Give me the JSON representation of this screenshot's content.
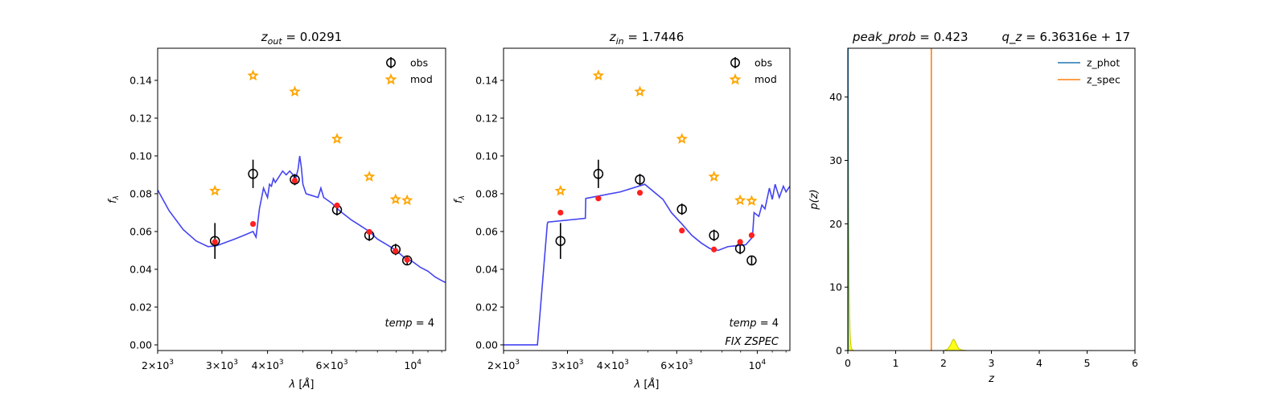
{
  "chart_data": [
    {
      "type": "scatter",
      "title": "z_out = 0.0291",
      "xlabel": "λ [Å]",
      "ylabel": "f_λ",
      "xscale": "log",
      "xlim": [
        2000,
        12300
      ],
      "ylim": [
        -0.003,
        0.157
      ],
      "xticks": [
        {
          "v": 2000,
          "t": "2×10³"
        },
        {
          "v": 3000,
          "t": "3×10³"
        },
        {
          "v": 4000,
          "t": "4×10³"
        },
        {
          "v": 6000,
          "t": "6×10³"
        },
        {
          "v": 10000,
          "t": "10⁴"
        }
      ],
      "yticks": [
        0.0,
        0.02,
        0.04,
        0.06,
        0.08,
        0.1,
        0.12,
        0.14
      ],
      "ytick_labels": [
        "0.00",
        "0.02",
        "0.04",
        "0.06",
        "0.08",
        "0.10",
        "0.12",
        "0.14"
      ],
      "legend": {
        "placement": "top-right",
        "entries": [
          "obs",
          "mod"
        ]
      },
      "annotations": [
        "temp = 4"
      ],
      "series": [
        {
          "name": "obs",
          "marker": "open-circle",
          "color": "#000000",
          "x": [
            2870,
            3650,
            4750,
            6200,
            7600,
            8970,
            9650
          ],
          "y": [
            0.055,
            0.0905,
            0.0875,
            0.0715,
            0.058,
            0.0505,
            0.0447
          ],
          "err": [
            0.0095,
            0.0075,
            0.003,
            0.003,
            0.003,
            0.003,
            0.0025
          ]
        },
        {
          "name": "mod",
          "marker": "star",
          "color": "#ffa500",
          "x": [
            2870,
            3650,
            4750,
            6200,
            7600,
            8970,
            9650
          ],
          "y": [
            0.0815,
            0.1425,
            0.134,
            0.109,
            0.089,
            0.077,
            0.0765
          ]
        },
        {
          "marker": "dot",
          "color": "#ff2020",
          "x": [
            2870,
            3650,
            4750,
            6200,
            7600,
            8970,
            9650
          ],
          "y": [
            0.0545,
            0.064,
            0.087,
            0.0738,
            0.0598,
            0.0497,
            0.045
          ]
        },
        {
          "marker": "line",
          "color": "#3a3af0",
          "x": [
            2000,
            2150,
            2350,
            2550,
            2750,
            2900,
            3050,
            3250,
            3450,
            3650,
            3720,
            3800,
            3900,
            4000,
            4050,
            4100,
            4150,
            4200,
            4300,
            4400,
            4500,
            4600,
            4700,
            4760,
            4850,
            4900,
            4950,
            5000,
            5100,
            5300,
            5500,
            5600,
            5700,
            5800,
            6000,
            6300,
            6800,
            7200,
            7600,
            8000,
            8500,
            9000,
            9500,
            10000,
            10500,
            11000,
            11500,
            12000,
            12300
          ],
          "y": [
            0.082,
            0.071,
            0.061,
            0.055,
            0.052,
            0.0525,
            0.054,
            0.056,
            0.058,
            0.06,
            0.057,
            0.072,
            0.083,
            0.078,
            0.085,
            0.084,
            0.088,
            0.086,
            0.089,
            0.092,
            0.09,
            0.092,
            0.09,
            0.087,
            0.093,
            0.1,
            0.094,
            0.085,
            0.08,
            0.079,
            0.078,
            0.083,
            0.078,
            0.077,
            0.075,
            0.071,
            0.066,
            0.063,
            0.06,
            0.056,
            0.053,
            0.05,
            0.046,
            0.044,
            0.041,
            0.039,
            0.036,
            0.034,
            0.033
          ]
        }
      ]
    },
    {
      "type": "scatter",
      "title": "z_in = 1.7446",
      "xlabel": "λ [Å]",
      "ylabel": "f_λ",
      "xscale": "log",
      "xlim": [
        2000,
        12300
      ],
      "ylim": [
        -0.003,
        0.157
      ],
      "xticks": [
        {
          "v": 2000,
          "t": "2×10³"
        },
        {
          "v": 3000,
          "t": "3×10³"
        },
        {
          "v": 4000,
          "t": "4×10³"
        },
        {
          "v": 6000,
          "t": "6×10³"
        },
        {
          "v": 10000,
          "t": "10⁴"
        }
      ],
      "yticks": [
        0.0,
        0.02,
        0.04,
        0.06,
        0.08,
        0.1,
        0.12,
        0.14
      ],
      "ytick_labels": [
        "0.00",
        "0.02",
        "0.04",
        "0.06",
        "0.08",
        "0.10",
        "0.12",
        "0.14"
      ],
      "legend": {
        "placement": "top-right",
        "entries": [
          "obs",
          "mod"
        ]
      },
      "annotations": [
        "temp = 4",
        "FIX ZSPEC"
      ],
      "series": [
        {
          "name": "obs",
          "marker": "open-circle",
          "color": "#000000",
          "x": [
            2870,
            3650,
            4750,
            6200,
            7600,
            8970,
            9650
          ],
          "y": [
            0.055,
            0.0905,
            0.0875,
            0.0718,
            0.058,
            0.051,
            0.0447
          ],
          "err": [
            0.0095,
            0.0075,
            0.003,
            0.003,
            0.003,
            0.003,
            0.0025
          ]
        },
        {
          "name": "mod",
          "marker": "star",
          "color": "#ffa500",
          "x": [
            2870,
            3650,
            4750,
            6200,
            7600,
            8970,
            9650
          ],
          "y": [
            0.0815,
            0.1425,
            0.134,
            0.109,
            0.089,
            0.0765,
            0.0762
          ]
        },
        {
          "marker": "dot",
          "color": "#ff2020",
          "x": [
            2870,
            3650,
            4750,
            6200,
            7600,
            8970,
            9650
          ],
          "y": [
            0.07,
            0.0775,
            0.0805,
            0.0605,
            0.0505,
            0.0545,
            0.058
          ]
        },
        {
          "marker": "line",
          "color": "#3a3af0",
          "x": [
            2000,
            2480,
            2480,
            2640,
            2650,
            3360,
            3370,
            4200,
            4900,
            5500,
            5800,
            6200,
            6600,
            7000,
            7400,
            7800,
            8300,
            8800,
            9300,
            9700,
            9800,
            10100,
            10300,
            10500,
            10800,
            11000,
            11200,
            11500,
            11800,
            12000,
            12300
          ],
          "y": [
            0.0,
            0.0,
            0.0,
            0.064,
            0.065,
            0.067,
            0.0775,
            0.081,
            0.085,
            0.077,
            0.07,
            0.064,
            0.058,
            0.054,
            0.051,
            0.05,
            0.052,
            0.0525,
            0.053,
            0.057,
            0.07,
            0.068,
            0.074,
            0.072,
            0.083,
            0.077,
            0.085,
            0.078,
            0.084,
            0.081,
            0.084
          ]
        }
      ]
    },
    {
      "type": "line",
      "title": "peak_prob = 0.423",
      "subtitle": "q_z = 6.36316e + 17",
      "xlabel": "z",
      "ylabel": "p(z)",
      "xlim": [
        0,
        6
      ],
      "ylim": [
        0,
        47.7
      ],
      "xticks": [
        0,
        1,
        2,
        3,
        4,
        5,
        6
      ],
      "yticks": [
        0,
        10,
        20,
        30,
        40
      ],
      "legend": {
        "placement": "top-right",
        "entries": [
          "z_phot",
          "z_spec"
        ]
      },
      "series": [
        {
          "name": "z_phot",
          "color": "#1f77b4",
          "x": [
            0.0,
            0.005,
            0.01,
            0.02,
            0.03,
            0.04,
            0.05,
            0.06,
            0.07,
            0.08,
            0.1,
            0.12,
            0.15,
            0.2,
            0.5,
            1.0,
            1.5,
            2.0,
            2.08,
            2.14,
            2.18,
            2.21,
            2.24,
            2.28,
            2.32,
            2.38,
            2.5,
            3.0,
            4.0,
            5.0
          ],
          "y": [
            47.7,
            47.7,
            40.0,
            20.0,
            10.0,
            5.0,
            2.5,
            1.2,
            0.6,
            0.3,
            0.1,
            0.02,
            0.0,
            0.0,
            0.0,
            0.0,
            0.0,
            0.0,
            0.2,
            0.8,
            1.5,
            1.8,
            1.5,
            0.8,
            0.3,
            0.08,
            0.0,
            0.0,
            0.0,
            0.0
          ]
        },
        {
          "name": "z_spec",
          "color": "#ff7f0e",
          "x": [
            1.7446
          ]
        }
      ]
    }
  ]
}
